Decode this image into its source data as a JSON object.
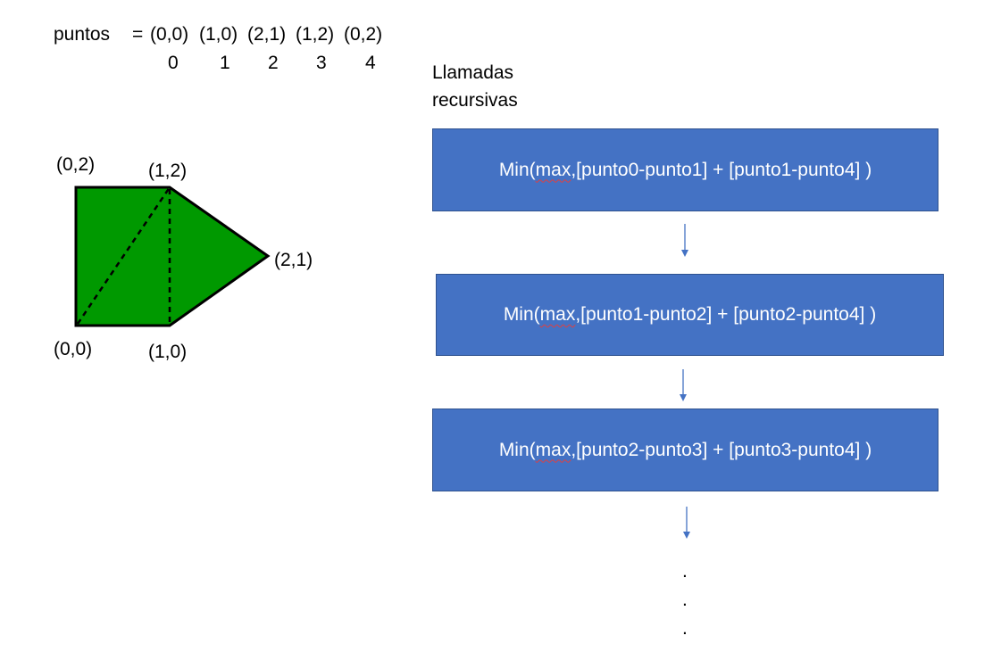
{
  "header": {
    "label": "puntos",
    "equals": "= (0,0) (1,0) (2,1) (1,2) (0,2)",
    "points": [
      "(0,0)",
      "(1,0)",
      "(2,1)",
      "(1,2)",
      "(0,2)"
    ],
    "indices": [
      "0",
      "1",
      "2",
      "3",
      "4"
    ]
  },
  "polygon": {
    "fill_color": "#009900",
    "vertex_labels": {
      "v00": "(0,0)",
      "v10": "(1,0)",
      "v21": "(2,1)",
      "v12": "(1,2)",
      "v02": "(0,2)"
    }
  },
  "calls": {
    "heading": "Llamadas\nrecursivas",
    "box_color": "#4472c4",
    "items": [
      {
        "fn": "Min(",
        "arg": "max",
        "rest": ",[punto0-punto1] + [punto1-punto4] )"
      },
      {
        "fn": "Min(",
        "arg": "max",
        "rest": ",[punto1-punto2] + [punto2-punto4] )"
      },
      {
        "fn": "Min(",
        "arg": "max",
        "rest": ",[punto2-punto3] + [punto3-punto4] )"
      }
    ],
    "continuation": ".",
    "continuation2": ".",
    "continuation3": "."
  }
}
